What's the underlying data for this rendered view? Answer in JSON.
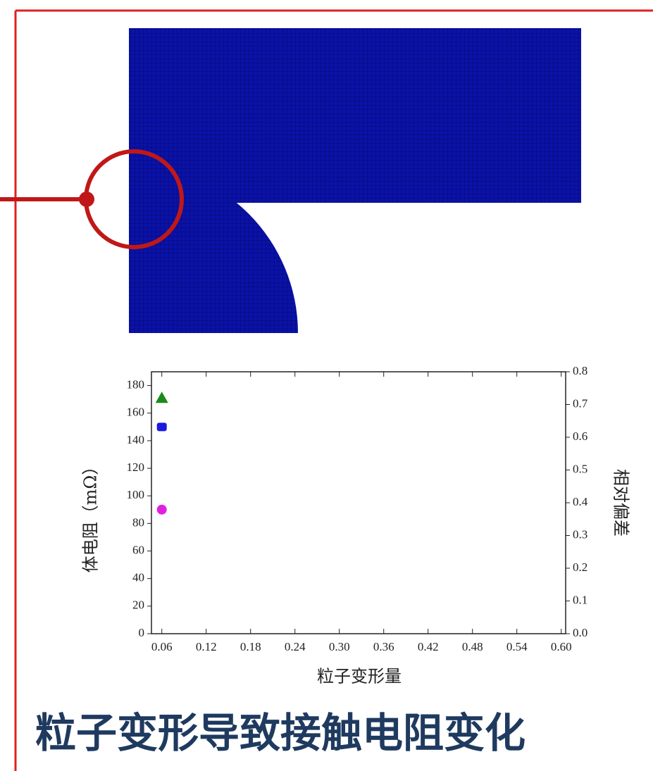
{
  "chart_data": {
    "type": "scatter",
    "title": "粒子变形导致接触电阻变化",
    "x_label": "粒子变形量",
    "y_label": "体电阻（mΩ）",
    "y2_label": "相对偏差",
    "x": [
      0.06
    ],
    "series": [
      {
        "color": "#1a8a1a",
        "marker": "triangle",
        "values": [
          171
        ]
      },
      {
        "color": "#1a1ae0",
        "marker": "square",
        "values": [
          150
        ]
      },
      {
        "color": "#e020e0",
        "marker": "circle",
        "values": [
          90
        ]
      }
    ],
    "xlim": [
      0.046,
      0.606
    ],
    "xticks": [
      0.06,
      {
        "value": 0.12,
        "label": "0.12"
      },
      {
        "value": 0.18,
        "label": "0.18"
      },
      0.24,
      {
        "value": 0.3,
        "label": "0.30"
      },
      0.36,
      0.42,
      0.48,
      0.54,
      {
        "value": 0.6,
        "label": "0.60"
      }
    ],
    "ylim": [
      0,
      190
    ],
    "yticks": [
      0,
      20,
      40,
      60,
      80,
      100,
      120,
      140,
      160,
      180
    ],
    "y2lim": [
      0,
      0.8
    ],
    "y2ticks": [
      {
        "value": 0,
        "label": "0.0"
      },
      0.1,
      0.2,
      0.3,
      0.4,
      0.5,
      0.6,
      0.7,
      0.8
    ],
    "grid": false
  }
}
